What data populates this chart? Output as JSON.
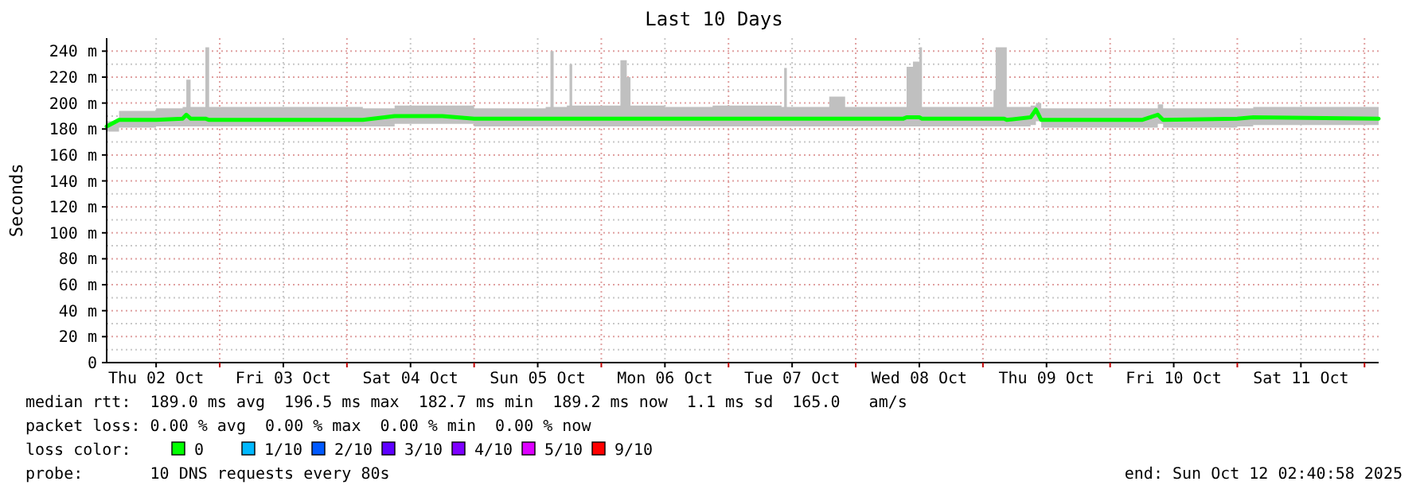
{
  "chart_data": {
    "type": "line",
    "title": "Last 10 Days",
    "ylabel": "Seconds",
    "legend_title": "loss color:",
    "legend": "bottom",
    "grid": true,
    "xlim": [
      "2025-10-02T02:40",
      "2025-10-12T02:40"
    ],
    "xticks": [
      {
        "value": "2025-10-02T12:00",
        "label": "Thu 02 Oct"
      },
      {
        "value": "2025-10-03T00:00",
        "label": null
      },
      {
        "value": "2025-10-03T12:00",
        "label": "Fri 03 Oct"
      },
      {
        "value": "2025-10-04T00:00",
        "label": null
      },
      {
        "value": "2025-10-04T12:00",
        "label": "Sat 04 Oct"
      },
      {
        "value": "2025-10-05T00:00",
        "label": null
      },
      {
        "value": "2025-10-05T12:00",
        "label": "Sun 05 Oct"
      },
      {
        "value": "2025-10-06T00:00",
        "label": null
      },
      {
        "value": "2025-10-06T12:00",
        "label": "Mon 06 Oct"
      },
      {
        "value": "2025-10-07T00:00",
        "label": null
      },
      {
        "value": "2025-10-07T12:00",
        "label": "Tue 07 Oct"
      },
      {
        "value": "2025-10-08T00:00",
        "label": null
      },
      {
        "value": "2025-10-08T12:00",
        "label": "Wed 08 Oct"
      },
      {
        "value": "2025-10-09T00:00",
        "label": null
      },
      {
        "value": "2025-10-09T12:00",
        "label": "Thu 09 Oct"
      },
      {
        "value": "2025-10-10T00:00",
        "label": null
      },
      {
        "value": "2025-10-10T12:00",
        "label": "Fri 10 Oct"
      },
      {
        "value": "2025-10-11T00:00",
        "label": null
      },
      {
        "value": "2025-10-11T12:00",
        "label": "Sat 11 Oct"
      },
      {
        "value": "2025-10-12T00:00",
        "label": null
      }
    ],
    "ylim": [
      0,
      250
    ],
    "yticks": [
      0,
      {
        "value": 20,
        "label": "20 m"
      },
      {
        "value": 40,
        "label": "40 m"
      },
      {
        "value": 60,
        "label": "60 m"
      },
      {
        "value": 80,
        "label": "80 m"
      },
      {
        "value": 100,
        "label": "100 m"
      },
      {
        "value": 120,
        "label": "120 m"
      },
      {
        "value": 140,
        "label": "140 m"
      },
      {
        "value": 160,
        "label": "160 m"
      },
      {
        "value": 180,
        "label": "180 m"
      },
      {
        "value": 200,
        "label": "200 m"
      },
      {
        "value": 220,
        "label": "220 m"
      },
      {
        "value": 240,
        "label": "240 m"
      }
    ],
    "x": [
      "2025-10-02T02:40",
      "2025-10-02T05:00",
      "2025-10-02T12:00",
      "2025-10-02T17:00",
      "2025-10-02T17:42",
      "2025-10-02T18:30",
      "2025-10-02T20:30",
      "2025-10-02T21:18",
      "2025-10-02T22:00",
      "2025-10-03T06:00",
      "2025-10-03T18:00",
      "2025-10-04T03:00",
      "2025-10-04T09:00",
      "2025-10-04T18:00",
      "2025-10-05T00:00",
      "2025-10-05T13:30",
      "2025-10-05T14:24",
      "2025-10-05T15:00",
      "2025-10-05T17:30",
      "2025-10-05T18:00",
      "2025-10-05T18:30",
      "2025-10-06T03:00",
      "2025-10-06T03:36",
      "2025-10-06T04:48",
      "2025-10-06T05:30",
      "2025-10-06T12:00",
      "2025-10-06T21:00",
      "2025-10-07T10:00",
      "2025-10-07T10:30",
      "2025-10-07T11:00",
      "2025-10-07T19:00",
      "2025-10-07T22:00",
      "2025-10-08T09:00",
      "2025-10-08T09:36",
      "2025-10-08T10:48",
      "2025-10-08T12:00",
      "2025-10-08T12:30",
      "2025-10-08T21:00",
      "2025-10-09T01:30",
      "2025-10-09T02:00",
      "2025-10-09T02:24",
      "2025-10-09T04:00",
      "2025-10-09T04:30",
      "2025-10-09T09:00",
      "2025-10-09T10:00",
      "2025-10-09T11:00",
      "2025-10-10T06:00",
      "2025-10-10T09:00",
      "2025-10-10T10:00",
      "2025-10-11T00:00",
      "2025-10-11T03:00",
      "2025-10-12T02:40"
    ],
    "series": [
      {
        "name": "0",
        "color": "#00ff00",
        "values": [
          182,
          187,
          187,
          188,
          191,
          188,
          188,
          188,
          187,
          187,
          187,
          187,
          190,
          190,
          188,
          188,
          188,
          188,
          188,
          188,
          188,
          188,
          188,
          188,
          188,
          188,
          188,
          188,
          188,
          188,
          188,
          188,
          188,
          189,
          189,
          189,
          188,
          188,
          188,
          188,
          188,
          188,
          187,
          189,
          195,
          187,
          187,
          191,
          187,
          188,
          189,
          188
        ],
        "lower": [
          178,
          181,
          182,
          182,
          182,
          182,
          182,
          182,
          182,
          182,
          182,
          182,
          184,
          184,
          182,
          182,
          182,
          182,
          182,
          182,
          182,
          182,
          182,
          182,
          182,
          182,
          182,
          182,
          182,
          182,
          182,
          182,
          182,
          182,
          182,
          182,
          182,
          182,
          182,
          182,
          182,
          182,
          182,
          183,
          186,
          181,
          181,
          184,
          181,
          182,
          183,
          182
        ],
        "upper": [
          186,
          194,
          196,
          197,
          218,
          197,
          197,
          243,
          197,
          197,
          197,
          196,
          198,
          198,
          196,
          197,
          240,
          197,
          198,
          230,
          198,
          198,
          233,
          220,
          198,
          197,
          198,
          197,
          227,
          197,
          205,
          197,
          197,
          228,
          232,
          243,
          197,
          197,
          197,
          210,
          243,
          243,
          197,
          198,
          200,
          196,
          196,
          199,
          196,
          196,
          197,
          196
        ]
      },
      {
        "name": "1/10",
        "color": "#00b8ff",
        "values": [
          null,
          null,
          null,
          null,
          null,
          null,
          null,
          null,
          null,
          null,
          null,
          null,
          null,
          null,
          null,
          null,
          null,
          null,
          null,
          null,
          null,
          null,
          null,
          null,
          null,
          null,
          null,
          null,
          null,
          null,
          null,
          null,
          null,
          null,
          null,
          null,
          null,
          null,
          null,
          null,
          null,
          null,
          null,
          null,
          null,
          null,
          null,
          null,
          null,
          null,
          null,
          null
        ]
      },
      {
        "name": "2/10",
        "color": "#0059ff",
        "values": [
          null,
          null,
          null,
          null,
          null,
          null,
          null,
          null,
          null,
          null,
          null,
          null,
          null,
          null,
          null,
          null,
          null,
          null,
          null,
          null,
          null,
          null,
          null,
          null,
          null,
          null,
          null,
          null,
          null,
          null,
          null,
          null,
          null,
          null,
          null,
          null,
          null,
          null,
          null,
          null,
          null,
          null,
          null,
          null,
          null,
          null,
          null,
          null,
          null,
          null,
          null,
          null
        ]
      },
      {
        "name": "3/10",
        "color": "#5e00ff",
        "values": [
          null,
          null,
          null,
          null,
          null,
          null,
          null,
          null,
          null,
          null,
          null,
          null,
          null,
          null,
          null,
          null,
          null,
          null,
          null,
          null,
          null,
          null,
          null,
          null,
          null,
          null,
          null,
          null,
          null,
          null,
          null,
          null,
          null,
          null,
          null,
          null,
          null,
          null,
          null,
          null,
          null,
          null,
          null,
          null,
          null,
          null,
          null,
          null,
          null,
          null,
          null,
          null
        ]
      },
      {
        "name": "4/10",
        "color": "#7e00ff",
        "values": [
          null,
          null,
          null,
          null,
          null,
          null,
          null,
          null,
          null,
          null,
          null,
          null,
          null,
          null,
          null,
          null,
          null,
          null,
          null,
          null,
          null,
          null,
          null,
          null,
          null,
          null,
          null,
          null,
          null,
          null,
          null,
          null,
          null,
          null,
          null,
          null,
          null,
          null,
          null,
          null,
          null,
          null,
          null,
          null,
          null,
          null,
          null,
          null,
          null,
          null,
          null,
          null
        ]
      },
      {
        "name": "5/10",
        "color": "#dd00ff",
        "values": [
          null,
          null,
          null,
          null,
          null,
          null,
          null,
          null,
          null,
          null,
          null,
          null,
          null,
          null,
          null,
          null,
          null,
          null,
          null,
          null,
          null,
          null,
          null,
          null,
          null,
          null,
          null,
          null,
          null,
          null,
          null,
          null,
          null,
          null,
          null,
          null,
          null,
          null,
          null,
          null,
          null,
          null,
          null,
          null,
          null,
          null,
          null,
          null,
          null,
          null,
          null,
          null
        ]
      },
      {
        "name": "9/10",
        "color": "#ff0000",
        "values": [
          null,
          null,
          null,
          null,
          null,
          null,
          null,
          null,
          null,
          null,
          null,
          null,
          null,
          null,
          null,
          null,
          null,
          null,
          null,
          null,
          null,
          null,
          null,
          null,
          null,
          null,
          null,
          null,
          null,
          null,
          null,
          null,
          null,
          null,
          null,
          null,
          null,
          null,
          null,
          null,
          null,
          null,
          null,
          null,
          null,
          null,
          null,
          null,
          null,
          null,
          null,
          null
        ]
      }
    ],
    "annotations": [
      "median rtt:  189.0 ms avg  196.5 ms max  182.7 ms min  189.2 ms now  1.1 ms sd  165.0   am/s",
      "packet loss: 0.00 % avg  0.00 % max  0.00 % min  0.00 % now",
      "probe:       10 DNS requests every 80s",
      "end: Sun Oct 12 02:40:58 2025"
    ]
  }
}
